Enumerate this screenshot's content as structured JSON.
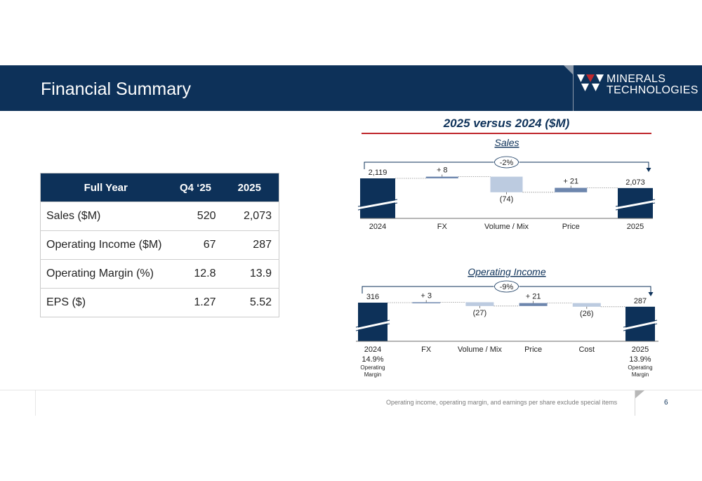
{
  "slide": {
    "title": "Financial Summary",
    "page_number": "6",
    "footnote": "Operating income, operating margin, and earnings per share exclude special items",
    "brand_color": "#0d3159",
    "accent_color": "#c0282d"
  },
  "logo": {
    "line1": "MINERALS",
    "line2": "TECHNOLOGIES",
    "mark_color": "#c0282d"
  },
  "table": {
    "headers": [
      "Full Year",
      "Q4 ‘25",
      "2025"
    ],
    "rows": [
      {
        "label": "Sales ($M)",
        "q4": "520",
        "fy": "2,073"
      },
      {
        "label": "Operating Income ($M)",
        "q4": "67",
        "fy": "287"
      },
      {
        "label": "Operating Margin (%)",
        "q4": "12.8",
        "fy": "13.9"
      },
      {
        "label": "EPS ($)",
        "q4": "1.27",
        "fy": "5.52"
      }
    ]
  },
  "charts_heading": "2025 versus 2024 ($M)",
  "chart_data": [
    {
      "type": "bar",
      "subtype": "waterfall",
      "title": "Sales",
      "categories": [
        "2024",
        "FX",
        "Volume / Mix",
        "Price",
        "2025"
      ],
      "values": [
        2119,
        8,
        -74,
        21,
        2073
      ],
      "roles": [
        "total",
        "delta",
        "delta",
        "delta",
        "total"
      ],
      "labels": [
        "2,119",
        "+ 8",
        "(74)",
        "+ 21",
        "2,073"
      ],
      "change_label": "-2%",
      "axis_break": true,
      "colors": {
        "total": "#0d3159",
        "increase": "#6d86ad",
        "decrease": "#bccbe0"
      }
    },
    {
      "type": "bar",
      "subtype": "waterfall",
      "title": "Operating Income",
      "categories": [
        "2024",
        "FX",
        "Volume / Mix",
        "Price",
        "Cost",
        "2025"
      ],
      "values": [
        316,
        3,
        -27,
        21,
        -26,
        287
      ],
      "roles": [
        "total",
        "delta",
        "delta",
        "delta",
        "delta",
        "total"
      ],
      "labels": [
        "316",
        "+ 3",
        "(27)",
        "+ 21",
        "(26)",
        "287"
      ],
      "change_label": "-9%",
      "axis_break": true,
      "footer_notes": {
        "first": {
          "value": "14.9%",
          "line1": "Operating",
          "line2": "Margin"
        },
        "last": {
          "value": "13.9%",
          "line1": "Operating",
          "line2": "Margin"
        }
      },
      "colors": {
        "total": "#0d3159",
        "increase": "#6d86ad",
        "decrease": "#bccbe0"
      }
    }
  ]
}
